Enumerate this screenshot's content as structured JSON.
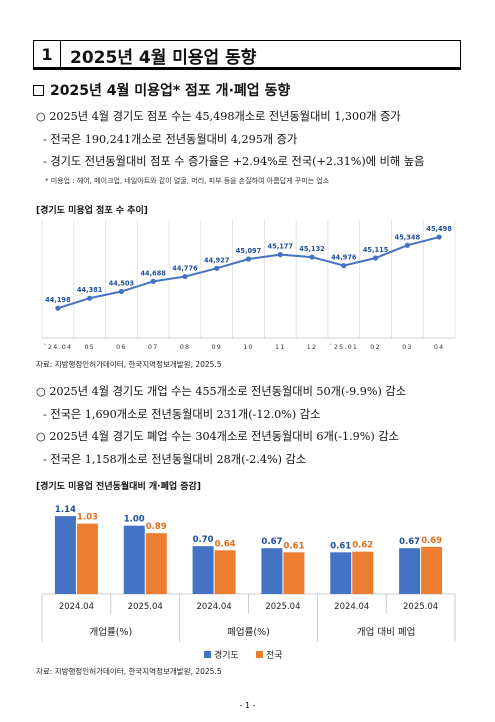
{
  "section": {
    "number": "1",
    "title": "2025년 4월 미용업 동향"
  },
  "subheading": "2025년 4월 미용업* 점포 개·폐업 동향",
  "store_block": {
    "bullet": "○ 2025년 4월 경기도 점포 수는 45,498개소로 전년동월대비 1,300개 증가",
    "dash1": "- 전국은 190,241개소로 전년동월대비 4,295개 증가",
    "dash2": "- 경기도 전년동월대비 점포 수 증가율은 +2.94%로 전국(+2.31%)에 비해 높음",
    "footnote": "* 미용업 : 헤어, 메이크업, 네일아트와 같이 얼굴, 머리, 피부 등을 손질하여 아름답게 꾸미는 업소"
  },
  "line_chart": {
    "title": "[경기도 미용업 점포 수 추이]",
    "source": "자료: 지방행정인허가데이터, 한국지역정보개발원, 2025.5"
  },
  "open_close_block": {
    "bullet1": "○ 2025년 4월 경기도 개업 수는 455개소로 전년동월대비 50개(-9.9%) 감소",
    "dash1": "- 전국은  1,690개소로 전년동월대비 231개(-12.0%) 감소",
    "bullet2": "○ 2025년 4월 경기도 폐업 수는 304개소로 전년동월대비 6개(-1.9%) 감소",
    "dash2": "- 전국은  1,158개소로 전년동월대비 28개(-2.4%) 감소"
  },
  "bar_chart": {
    "title": "[경기도 미용업 전년동월대비 개·폐업 증감]",
    "source": "자료: 지방행정인허가데이터, 한국지역정보개발원, 2025.5"
  },
  "page_number": "- 1 -",
  "colors": {
    "line": "#4472C4",
    "gyeonggi": "#4472C4",
    "national": "#ED7D31",
    "label_blue": "#1F4E9E",
    "label_orange": "#E06D1C"
  },
  "chart_data": [
    {
      "type": "line",
      "title": "[경기도 미용업 점포 수 추이]",
      "categories": [
        "`24.04",
        "05",
        "06",
        "07",
        "08",
        "09",
        "10",
        "11",
        "12",
        "`25.01",
        "02",
        "03",
        "04"
      ],
      "series": [
        {
          "values": [
            44198,
            44381,
            44503,
            44688,
            44776,
            44927,
            45097,
            45177,
            45132,
            44976,
            45115,
            45348,
            45498
          ]
        }
      ],
      "data_labels": [
        "44,198",
        "44,381",
        "44,503",
        "44,688",
        "44,776",
        "44,927",
        "45,097",
        "45,177",
        "45,132",
        "44,976",
        "45,115",
        "45,348",
        "45,498"
      ],
      "grid": "vertical",
      "legend": "none"
    },
    {
      "type": "bar",
      "title": "[경기도 미용업 전년동월대비 개·폐업 증감]",
      "groups": [
        "개업률(%)",
        "폐업률(%)",
        "개업 대비 폐업"
      ],
      "categories": [
        "2024.04",
        "2025.04",
        "2024.04",
        "2025.04",
        "2024.04",
        "2025.04"
      ],
      "series": [
        {
          "name": "경기도",
          "values": [
            1.14,
            1.0,
            0.7,
            0.67,
            0.61,
            0.67
          ]
        },
        {
          "name": "전국",
          "values": [
            1.03,
            0.89,
            0.64,
            0.61,
            0.62,
            0.69
          ]
        }
      ],
      "legend": "bottom"
    }
  ]
}
